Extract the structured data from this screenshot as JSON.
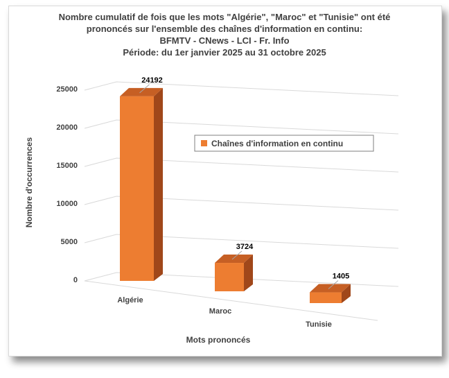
{
  "chart_data": {
    "type": "bar",
    "style": "3d-column",
    "title": [
      "Nombre cumulatif de fois que les mots \"Algérie\", \"Maroc\" et \"Tunisie\" ont été",
      "prononcés sur l'ensemble des chaînes d'information en continu:",
      "BFMTV - CNews - LCI - Fr. Info",
      "Période: du 1er janvier 2025 au 31 octobre 2025"
    ],
    "xlabel": "Mots prononcés",
    "ylabel": "Nombre d'occurrences",
    "ylim": [
      0,
      25000
    ],
    "yticks": [
      "0",
      "5000",
      "10000",
      "15000",
      "20000",
      "25000"
    ],
    "categories": [
      "Algérie",
      "Maroc",
      "Tunisie"
    ],
    "series": [
      {
        "name": "Chaînes d'information en continu",
        "values": [
          24192,
          3724,
          1405
        ],
        "color": "#ed7d31",
        "side_color": "#a0471a"
      }
    ],
    "data_labels": [
      "24192",
      "3724",
      "1405"
    ],
    "grid": true,
    "legend": "top-right"
  }
}
